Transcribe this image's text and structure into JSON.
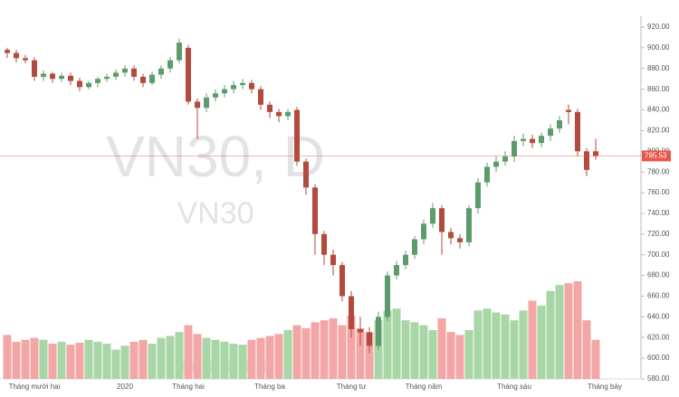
{
  "chart_data": {
    "type": "candlestick",
    "watermark": "VN30, D",
    "watermark_sub": "VN30",
    "categories": [
      null,
      null,
      null,
      "Tháng mười hai",
      null,
      null,
      null,
      null,
      null,
      null,
      null,
      null,
      null,
      "2020",
      null,
      null,
      null,
      null,
      null,
      null,
      "Tháng hai",
      null,
      null,
      null,
      null,
      null,
      null,
      null,
      null,
      "Tháng ba",
      null,
      null,
      null,
      null,
      null,
      null,
      null,
      null,
      "Tháng tư",
      null,
      null,
      null,
      null,
      null,
      null,
      null,
      "Tháng năm",
      null,
      null,
      null,
      null,
      null,
      null,
      null,
      null,
      null,
      "Tháng sáu",
      null,
      null,
      null,
      null,
      null,
      null,
      null,
      null,
      null,
      "Tháng bảy"
    ],
    "open": [
      898,
      895,
      890,
      888,
      872,
      875,
      870,
      873,
      868,
      862,
      866,
      870,
      872,
      876,
      880,
      872,
      866,
      874,
      880,
      888,
      900,
      848,
      842,
      852,
      856,
      860,
      864,
      866,
      860,
      845,
      838,
      834,
      840,
      790,
      765,
      720,
      700,
      690,
      660,
      628,
      625,
      612,
      640,
      680,
      690,
      700,
      715,
      730,
      745,
      722,
      716,
      712,
      745,
      770,
      785,
      790,
      795,
      810,
      812,
      808,
      815,
      822,
      840,
      838,
      800,
      800,
      null
    ],
    "high": [
      900,
      898,
      893,
      891,
      878,
      877,
      876,
      876,
      871,
      868,
      872,
      875,
      879,
      883,
      883,
      875,
      877,
      883,
      891,
      909,
      903,
      851,
      856,
      860,
      864,
      868,
      870,
      869,
      863,
      848,
      841,
      841,
      843,
      793,
      768,
      723,
      705,
      693,
      665,
      640,
      630,
      645,
      684,
      694,
      704,
      718,
      734,
      750,
      748,
      726,
      720,
      748,
      774,
      789,
      795,
      800,
      815,
      817,
      816,
      818,
      826,
      834,
      845,
      841,
      803,
      812,
      null
    ],
    "low": [
      890,
      886,
      885,
      868,
      868,
      866,
      867,
      864,
      858,
      860,
      862,
      867,
      869,
      872,
      868,
      862,
      864,
      870,
      876,
      885,
      845,
      812,
      838,
      848,
      852,
      856,
      860,
      856,
      840,
      832,
      828,
      830,
      786,
      758,
      700,
      690,
      680,
      655,
      620,
      612,
      605,
      608,
      636,
      676,
      686,
      696,
      710,
      726,
      700,
      710,
      706,
      708,
      740,
      766,
      780,
      786,
      790,
      805,
      803,
      804,
      810,
      818,
      826,
      795,
      776,
      792,
      null
    ],
    "close": [
      895,
      890,
      888,
      872,
      875,
      870,
      873,
      868,
      862,
      866,
      870,
      872,
      876,
      880,
      872,
      866,
      874,
      880,
      888,
      905,
      848,
      842,
      852,
      856,
      860,
      864,
      866,
      860,
      845,
      838,
      834,
      838,
      790,
      765,
      720,
      700,
      690,
      660,
      628,
      625,
      612,
      640,
      680,
      690,
      700,
      715,
      730,
      745,
      722,
      716,
      712,
      745,
      770,
      785,
      790,
      795,
      810,
      812,
      808,
      815,
      822,
      830,
      838,
      800,
      782,
      795.53,
      null
    ],
    "volume": [
      45,
      38,
      40,
      42,
      40,
      36,
      38,
      35,
      37,
      40,
      38,
      36,
      30,
      34,
      38,
      40,
      36,
      42,
      44,
      48,
      55,
      46,
      42,
      40,
      38,
      36,
      35,
      40,
      42,
      44,
      46,
      50,
      55,
      52,
      58,
      60,
      62,
      55,
      65,
      52,
      48,
      60,
      70,
      72,
      60,
      58,
      55,
      50,
      62,
      48,
      45,
      50,
      70,
      72,
      68,
      66,
      60,
      70,
      80,
      75,
      90,
      96,
      98,
      100,
      60,
      40,
      null
    ],
    "up_color": "#5c9c6c",
    "down_color": "#b34a3e",
    "volume_up_color": "#a9d6a6",
    "volume_down_color": "#f3a6a6",
    "last_price": 795.53,
    "last_price_color": "#e8584a",
    "ylim": [
      580,
      920
    ],
    "yticks": [
      {
        "value": 580,
        "label": "580.00"
      },
      {
        "value": 600,
        "label": "600.00"
      },
      {
        "value": 620,
        "label": "620.00"
      },
      {
        "value": 640,
        "label": "640.00"
      },
      {
        "value": 660,
        "label": "660.00"
      },
      {
        "value": 680,
        "label": "680.00"
      },
      {
        "value": 700,
        "label": "700.00"
      },
      {
        "value": 720,
        "label": "720.00"
      },
      {
        "value": 740,
        "label": "740.00"
      },
      {
        "value": 760,
        "label": "760.00"
      },
      {
        "value": 780,
        "label": "780.00"
      },
      {
        "value": 800,
        "label": "800.00"
      },
      {
        "value": 820,
        "label": "820.00"
      },
      {
        "value": 840,
        "label": "840.00"
      },
      {
        "value": 860,
        "label": "860.00"
      },
      {
        "value": 880,
        "label": "880.00"
      },
      {
        "value": 900,
        "label": "900.00"
      },
      {
        "value": 920,
        "label": "920.00"
      }
    ],
    "y2lim": [
      0,
      360
    ],
    "grid": false
  }
}
